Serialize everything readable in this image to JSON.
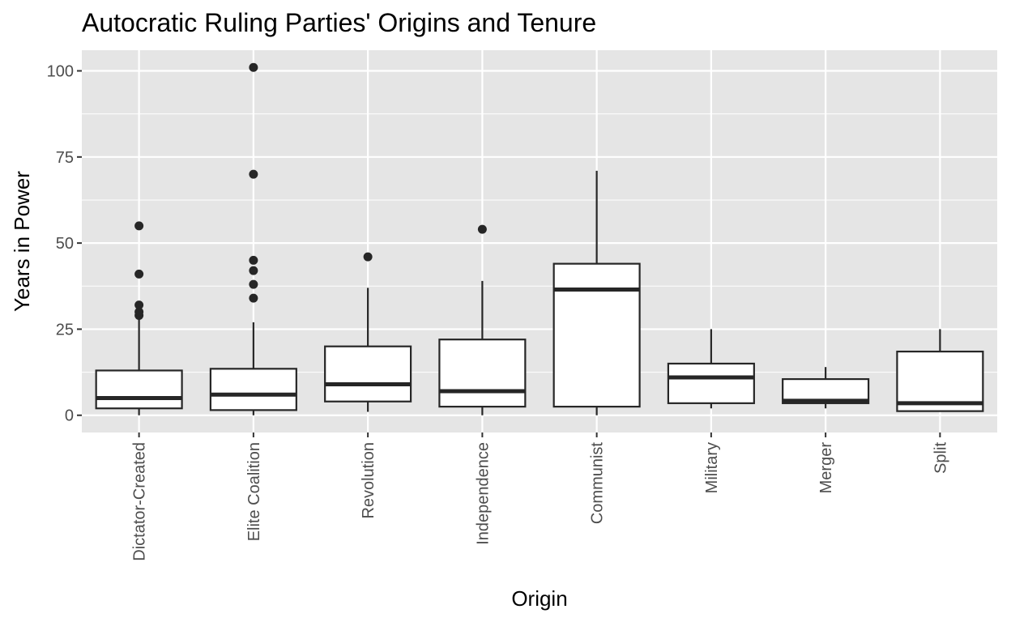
{
  "chart_data": {
    "type": "boxplot",
    "title": "Autocratic Ruling Parties' Origins and Tenure",
    "xlabel": "Origin",
    "ylabel": "Years in Power",
    "ylim": [
      -5,
      106
    ],
    "yticks": [
      0,
      25,
      50,
      75,
      100
    ],
    "grid": true,
    "legend": "none",
    "colors": {
      "panel_background": "#e5e5e5",
      "grid": "#ffffff",
      "box_fill": "#ffffff",
      "box_stroke": "#262626",
      "outlier": "#262626"
    },
    "categories": [
      "Dictator-Created",
      "Elite Coalition",
      "Revolution",
      "Independence",
      "Communist",
      "Military",
      "Merger",
      "Split"
    ],
    "boxes": [
      {
        "category": "Dictator-Created",
        "whisker_low": 0,
        "q1": 2,
        "median": 5,
        "q3": 13,
        "whisker_high": 28,
        "outliers": [
          29,
          30,
          32,
          41,
          55
        ]
      },
      {
        "category": "Elite Coalition",
        "whisker_low": 0,
        "q1": 1.5,
        "median": 6,
        "q3": 13.5,
        "whisker_high": 27,
        "outliers": [
          34,
          38,
          42,
          45,
          70,
          101
        ]
      },
      {
        "category": "Revolution",
        "whisker_low": 1,
        "q1": 4,
        "median": 9,
        "q3": 20,
        "whisker_high": 37,
        "outliers": [
          46
        ]
      },
      {
        "category": "Independence",
        "whisker_low": 0,
        "q1": 2.5,
        "median": 7,
        "q3": 22,
        "whisker_high": 39,
        "outliers": [
          54
        ]
      },
      {
        "category": "Communist",
        "whisker_low": 0,
        "q1": 2.5,
        "median": 36.5,
        "q3": 44,
        "whisker_high": 71,
        "outliers": []
      },
      {
        "category": "Military",
        "whisker_low": 2,
        "q1": 3.5,
        "median": 11,
        "q3": 15,
        "whisker_high": 25,
        "outliers": []
      },
      {
        "category": "Merger",
        "whisker_low": 2,
        "q1": 3.5,
        "median": 4.2,
        "q3": 10.5,
        "whisker_high": 14,
        "outliers": []
      },
      {
        "category": "Split",
        "whisker_low": 1,
        "q1": 1.2,
        "median": 3.5,
        "q3": 18.5,
        "whisker_high": 25,
        "outliers": []
      }
    ]
  }
}
